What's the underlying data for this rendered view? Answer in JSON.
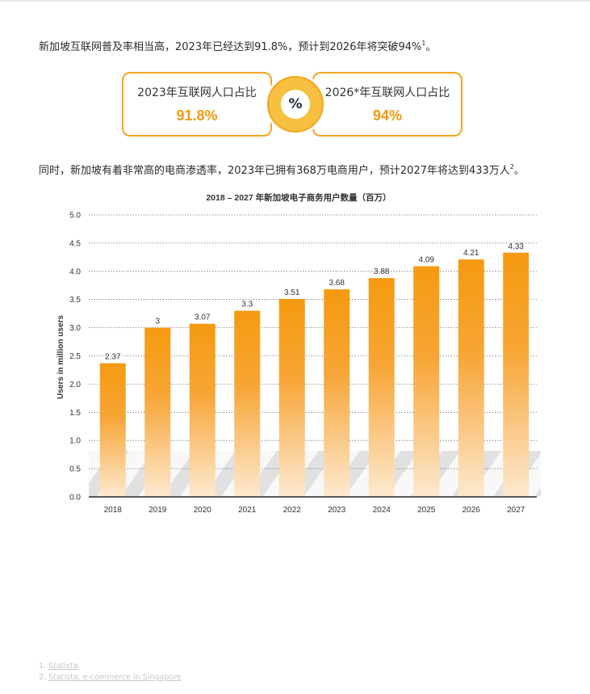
{
  "para1": {
    "text": "新加坡互联网普及率相当高，2023年已经达到91.8%，预计到2026年将突破94%",
    "sup": "1",
    "end": "。"
  },
  "stats": {
    "left": {
      "label": "2023年互联网人口占比",
      "value": "91.8%"
    },
    "right": {
      "label": "2026*年互联网人口占比",
      "value": "94%"
    },
    "center_symbol": "%",
    "center_icon": "percent-icon"
  },
  "para2": {
    "text": "同时，新加坡有着非常高的电商渗透率，2023年已拥有368万电商用户，预计2027年将达到433万人",
    "sup": "2",
    "end": "。"
  },
  "chart_data": {
    "type": "bar",
    "title": "2018 – 2027 年新加坡电子商务用户数量（百万）",
    "ylabel": "Users in million users",
    "xlabel": "",
    "categories": [
      "2018",
      "2019",
      "2020",
      "2021",
      "2022",
      "2023",
      "2024",
      "2025",
      "2026",
      "2027"
    ],
    "values": [
      2.37,
      3,
      3.07,
      3.3,
      3.51,
      3.68,
      3.88,
      4.09,
      4.21,
      4.33
    ],
    "value_labels": [
      "2.37",
      "3",
      "3.07",
      "3.3",
      "3.51",
      "3.68",
      "3.88",
      "4.09",
      "4.21",
      "4.33"
    ],
    "ylim": [
      0,
      5.0
    ],
    "yticks": [
      "0.0",
      "0.5",
      "1.0",
      "1.5",
      "2.0",
      "2.5",
      "3.0",
      "3.5",
      "4.0",
      "4.5",
      "5.0"
    ],
    "grid": "dotted horizontal",
    "bar_color_top": "#f59a10",
    "bar_color_bottom": "#fde6c8"
  },
  "footnotes": [
    {
      "num": "1.",
      "text": "Statista"
    },
    {
      "num": "2.",
      "text": "Statista, e-commerce in Singapore"
    }
  ]
}
